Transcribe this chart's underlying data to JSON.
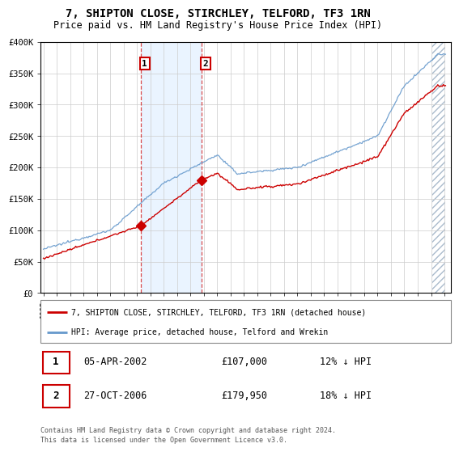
{
  "title": "7, SHIPTON CLOSE, STIRCHLEY, TELFORD, TF3 1RN",
  "subtitle": "Price paid vs. HM Land Registry's House Price Index (HPI)",
  "legend_label_property": "7, SHIPTON CLOSE, STIRCHLEY, TELFORD, TF3 1RN (detached house)",
  "legend_label_hpi": "HPI: Average price, detached house, Telford and Wrekin",
  "transactions": [
    {
      "label": "1",
      "date": "05-APR-2002",
      "price": 107000,
      "pct": "12% ↓ HPI",
      "x_year": 2002.27
    },
    {
      "label": "2",
      "date": "27-OCT-2006",
      "price": 179950,
      "pct": "18% ↓ HPI",
      "x_year": 2006.82
    }
  ],
  "footer_line1": "Contains HM Land Registry data © Crown copyright and database right 2024.",
  "footer_line2": "This data is licensed under the Open Government Licence v3.0.",
  "property_color": "#cc0000",
  "hpi_color": "#6699cc",
  "shade_color": "#ddeeff",
  "ylim": [
    0,
    400000
  ],
  "xlim_start": 1994.8,
  "xlim_end": 2025.5,
  "yticks": [
    0,
    50000,
    100000,
    150000,
    200000,
    250000,
    300000,
    350000,
    400000
  ],
  "ytick_labels": [
    "£0",
    "£50K",
    "£100K",
    "£150K",
    "£200K",
    "£250K",
    "£300K",
    "£350K",
    "£400K"
  ],
  "xticks": [
    1995,
    1996,
    1997,
    1998,
    1999,
    2000,
    2001,
    2002,
    2003,
    2004,
    2005,
    2006,
    2007,
    2008,
    2009,
    2010,
    2011,
    2012,
    2013,
    2014,
    2015,
    2016,
    2017,
    2018,
    2019,
    2020,
    2021,
    2022,
    2023,
    2024,
    2025
  ],
  "hatch_start": 2024.0
}
